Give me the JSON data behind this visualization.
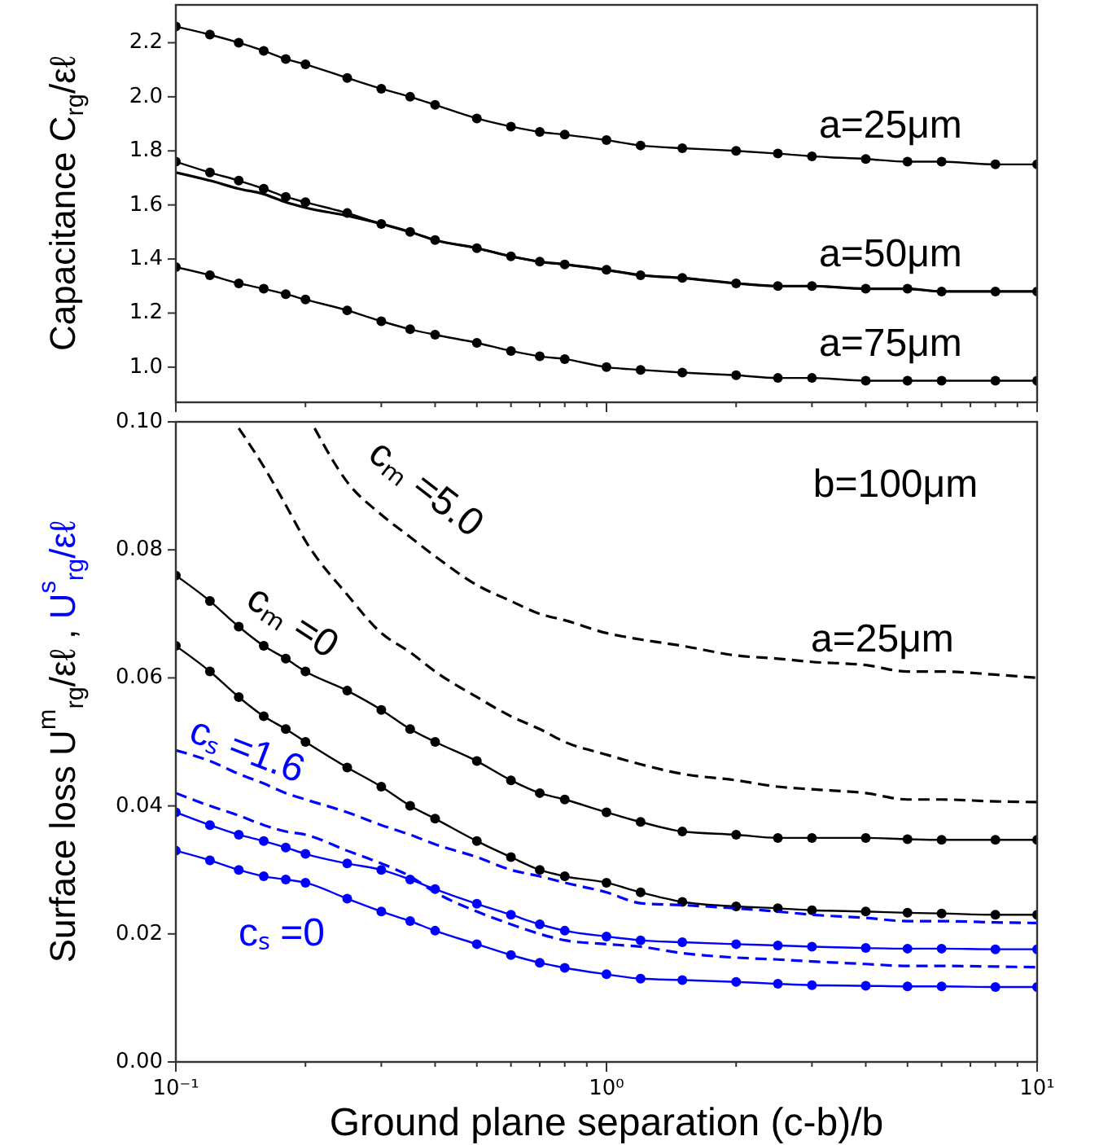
{
  "chart_data": [
    {
      "type": "line",
      "ylabel": "Capacitance  C$_{rg}$/εℓ",
      "log": "x",
      "tick_labels": "y",
      "xlim": [
        0.1,
        10
      ],
      "xticks": [
        {
          "value": 0.1,
          "label": null
        },
        {
          "value": 0.2,
          "label": null
        },
        {
          "value": 0.3,
          "label": null
        },
        {
          "value": 0.4,
          "label": null
        },
        {
          "value": 0.5,
          "label": null
        },
        {
          "value": 0.6,
          "label": null
        },
        {
          "value": 0.7,
          "label": null
        },
        {
          "value": 0.8,
          "label": null
        },
        {
          "value": 0.9,
          "label": null
        },
        {
          "value": 1,
          "label": null
        },
        {
          "value": 2,
          "label": null
        },
        {
          "value": 3,
          "label": null
        },
        {
          "value": 4,
          "label": null
        },
        {
          "value": 5,
          "label": null
        },
        {
          "value": 6,
          "label": null
        },
        {
          "value": 7,
          "label": null
        },
        {
          "value": 8,
          "label": null
        },
        {
          "value": 9,
          "label": null
        },
        {
          "value": 10,
          "label": null
        }
      ],
      "ylim": [
        0.87,
        2.34
      ],
      "yticks": [
        {
          "value": 1,
          "label": "1.0"
        },
        {
          "value": 1.2,
          "label": "1.2"
        },
        {
          "value": 1.4,
          "label": "1.4"
        },
        {
          "value": 1.6,
          "label": "1.6"
        },
        {
          "value": 1.8,
          "label": "1.8"
        },
        {
          "value": 2,
          "label": "2.0"
        },
        {
          "value": 2.2,
          "label": "2.2"
        }
      ],
      "x": [
        0.1,
        0.12,
        0.14,
        0.16,
        0.18,
        0.2,
        0.25,
        0.3,
        0.35,
        0.4,
        0.5,
        0.6,
        0.7,
        0.8,
        1,
        1.2,
        1.5,
        2,
        2.5,
        3,
        4,
        5,
        6,
        8,
        10
      ],
      "series": [
        {
          "name": "a=25μm",
          "color": "#000000",
          "marker": "circle",
          "line_style": "solid",
          "values": [
            2.26,
            2.23,
            2.2,
            2.17,
            2.14,
            2.12,
            2.07,
            2.03,
            2.0,
            1.97,
            1.92,
            1.89,
            1.87,
            1.86,
            1.84,
            1.82,
            1.81,
            1.8,
            1.79,
            1.78,
            1.77,
            1.76,
            1.76,
            1.75,
            1.75
          ]
        },
        {
          "name": "a=50μm",
          "color": "#000000",
          "marker": "circle",
          "line_style": "solid",
          "values": [
            1.76,
            1.72,
            1.69,
            1.66,
            1.63,
            1.61,
            1.57,
            1.53,
            1.5,
            1.47,
            1.44,
            1.41,
            1.39,
            1.38,
            1.36,
            1.34,
            1.33,
            1.31,
            1.3,
            1.3,
            1.29,
            1.29,
            1.28,
            1.28,
            1.28
          ]
        },
        {
          "color": "#000000",
          "marker": "none",
          "line_style": "solid",
          "values": [
            1.72,
            1.69,
            1.66,
            1.64,
            1.61,
            1.59,
            1.56,
            1.53,
            1.5,
            1.47,
            1.44,
            1.41,
            1.39,
            1.38,
            1.36,
            1.34,
            1.33,
            1.31,
            1.3,
            1.3,
            1.29,
            1.29,
            1.28,
            1.28,
            1.28
          ]
        },
        {
          "name": "a=75μm",
          "color": "#000000",
          "marker": "circle",
          "line_style": "solid",
          "values": [
            1.37,
            1.34,
            1.31,
            1.29,
            1.27,
            1.25,
            1.21,
            1.17,
            1.14,
            1.12,
            1.09,
            1.06,
            1.04,
            1.03,
            1.0,
            0.99,
            0.98,
            0.97,
            0.96,
            0.96,
            0.95,
            0.95,
            0.95,
            0.95,
            0.95
          ]
        }
      ]
    },
    {
      "type": "line",
      "xlabel": "Ground plane separation (c-b)/b",
      "ylabel": "Surface loss  U$^{m}$$_{rg}$/εℓ , U$^{s}$$_{rg}$/εℓ",
      "log": "x",
      "xlim": [
        0.1,
        10
      ],
      "xticks": [
        {
          "value": 0.1,
          "label": "10⁻¹"
        },
        {
          "value": 0.2,
          "label": null
        },
        {
          "value": 0.3,
          "label": null
        },
        {
          "value": 0.4,
          "label": null
        },
        {
          "value": 0.5,
          "label": null
        },
        {
          "value": 0.6,
          "label": null
        },
        {
          "value": 0.7,
          "label": null
        },
        {
          "value": 0.8,
          "label": null
        },
        {
          "value": 0.9,
          "label": null
        },
        {
          "value": 1,
          "label": "10⁰"
        },
        {
          "value": 2,
          "label": null
        },
        {
          "value": 3,
          "label": null
        },
        {
          "value": 4,
          "label": null
        },
        {
          "value": 5,
          "label": null
        },
        {
          "value": 6,
          "label": null
        },
        {
          "value": 7,
          "label": null
        },
        {
          "value": 8,
          "label": null
        },
        {
          "value": 9,
          "label": null
        },
        {
          "value": 10,
          "label": "10¹"
        }
      ],
      "ylim": [
        0,
        0.1
      ],
      "yticks": [
        {
          "value": 0,
          "label": "0.00"
        },
        {
          "value": 0.02,
          "label": "0.02"
        },
        {
          "value": 0.04,
          "label": "0.04"
        },
        {
          "value": 0.06,
          "label": "0.06"
        },
        {
          "value": 0.08,
          "label": "0.08"
        },
        {
          "value": 0.1,
          "label": "0.10"
        }
      ],
      "x": [
        0.1,
        0.12,
        0.14,
        0.16,
        0.18,
        0.2,
        0.25,
        0.3,
        0.35,
        0.4,
        0.5,
        0.6,
        0.7,
        0.8,
        1,
        1.2,
        1.5,
        2,
        2.5,
        3,
        4,
        5,
        6,
        8,
        10
      ],
      "series": [
        {
          "name": "cₘ =5.0",
          "color": "#000000",
          "marker": "none",
          "line_style": "dashed",
          "x": [
            0.21,
            0.25,
            0.3,
            0.35,
            0.4,
            0.5,
            0.6,
            0.7,
            0.8,
            1,
            1.2,
            1.5,
            2,
            2.5,
            3,
            4,
            5,
            6,
            8,
            10
          ],
          "values": [
            0.099,
            0.0906,
            0.0855,
            0.082,
            0.079,
            0.0745,
            0.072,
            0.07,
            0.069,
            0.067,
            0.066,
            0.065,
            0.0635,
            0.063,
            0.0625,
            0.062,
            0.061,
            0.061,
            0.0605,
            0.06
          ]
        },
        {
          "color": "#000000",
          "marker": "none",
          "line_style": "dashed",
          "x": [
            0.14,
            0.16,
            0.18,
            0.2,
            0.25,
            0.3,
            0.35,
            0.4,
            0.5,
            0.6,
            0.7,
            0.8,
            1,
            1.2,
            1.5,
            2,
            2.5,
            3,
            4,
            5,
            6,
            8,
            10
          ],
          "values": [
            0.099,
            0.093,
            0.087,
            0.0814,
            0.073,
            0.067,
            0.064,
            0.061,
            0.057,
            0.054,
            0.052,
            0.05,
            0.048,
            0.0465,
            0.045,
            0.044,
            0.043,
            0.0426,
            0.042,
            0.041,
            0.041,
            0.0407,
            0.0406
          ]
        },
        {
          "name": "cₘ =0",
          "color": "#000000",
          "marker": "circle",
          "line_style": "solid",
          "values": [
            0.076,
            0.072,
            0.068,
            0.065,
            0.063,
            0.061,
            0.058,
            0.055,
            0.052,
            0.05,
            0.047,
            0.044,
            0.042,
            0.041,
            0.039,
            0.0375,
            0.036,
            0.0355,
            0.035,
            0.035,
            0.035,
            0.0348,
            0.0347,
            0.0347,
            0.0347
          ]
        },
        {
          "color": "#000000",
          "marker": "circle",
          "line_style": "solid",
          "values": [
            0.065,
            0.061,
            0.057,
            0.054,
            0.052,
            0.05,
            0.046,
            0.043,
            0.04,
            0.038,
            0.0345,
            0.032,
            0.03,
            0.029,
            0.028,
            0.0265,
            0.025,
            0.0243,
            0.024,
            0.0237,
            0.0235,
            0.0233,
            0.0232,
            0.023,
            0.023
          ]
        },
        {
          "name": "cₛ =1.6",
          "color": "#0000ff",
          "marker": "none",
          "line_style": "dashed",
          "values": [
            0.0487,
            0.047,
            0.045,
            0.0435,
            0.042,
            0.041,
            0.039,
            0.037,
            0.0355,
            0.034,
            0.032,
            0.03,
            0.029,
            0.028,
            0.0265,
            0.0248,
            0.0245,
            0.024,
            0.0235,
            0.023,
            0.0225,
            0.022,
            0.022,
            0.0218,
            0.0217
          ]
        },
        {
          "color": "#0000ff",
          "marker": "none",
          "line_style": "dashed",
          "values": [
            0.042,
            0.04,
            0.0385,
            0.037,
            0.036,
            0.0355,
            0.033,
            0.031,
            0.029,
            0.0265,
            0.0235,
            0.0215,
            0.02,
            0.019,
            0.0184,
            0.018,
            0.017,
            0.0163,
            0.016,
            0.0157,
            0.0153,
            0.015,
            0.015,
            0.0149,
            0.0148
          ]
        },
        {
          "color": "#0000ff",
          "marker": "circle",
          "line_style": "solid",
          "values": [
            0.039,
            0.037,
            0.0355,
            0.0345,
            0.0335,
            0.0325,
            0.031,
            0.03,
            0.0285,
            0.027,
            0.0247,
            0.023,
            0.0215,
            0.0205,
            0.0196,
            0.019,
            0.0187,
            0.0184,
            0.0182,
            0.018,
            0.0178,
            0.0177,
            0.0177,
            0.0176,
            0.0176
          ]
        },
        {
          "name": "cₛ =0",
          "color": "#0000ff",
          "marker": "circle",
          "line_style": "solid",
          "values": [
            0.033,
            0.0315,
            0.03,
            0.029,
            0.0285,
            0.028,
            0.0255,
            0.0235,
            0.022,
            0.0205,
            0.0184,
            0.0167,
            0.0155,
            0.0147,
            0.0137,
            0.013,
            0.0128,
            0.0125,
            0.0122,
            0.012,
            0.0119,
            0.0118,
            0.0118,
            0.0117,
            0.0117
          ]
        }
      ],
      "annotations": [
        "b=100μm",
        "a=25μm"
      ]
    }
  ]
}
